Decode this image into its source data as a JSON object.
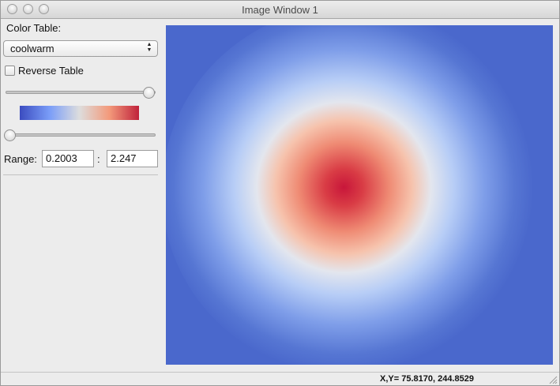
{
  "window": {
    "title": "Image Window 1"
  },
  "controls": {
    "color_table_label": "Color Table:",
    "color_table_selected": "coolwarm",
    "reverse_label": "Reverse Table",
    "reverse_checked": false,
    "top_slider_value": 1.0,
    "bottom_slider_value": 0.0,
    "range_label": "Range:",
    "range_min": "0.2003",
    "range_sep": ":",
    "range_max": "2.247"
  },
  "colors": {
    "cool": "#4a68cc",
    "mid": "#dddddd",
    "warm": "#d21f3c"
  },
  "icons": {
    "select_arrows": "up-down-arrows-icon",
    "resize": "resize-grip-icon"
  },
  "status": {
    "coords": "X,Y= 75.8170, 244.8529"
  }
}
